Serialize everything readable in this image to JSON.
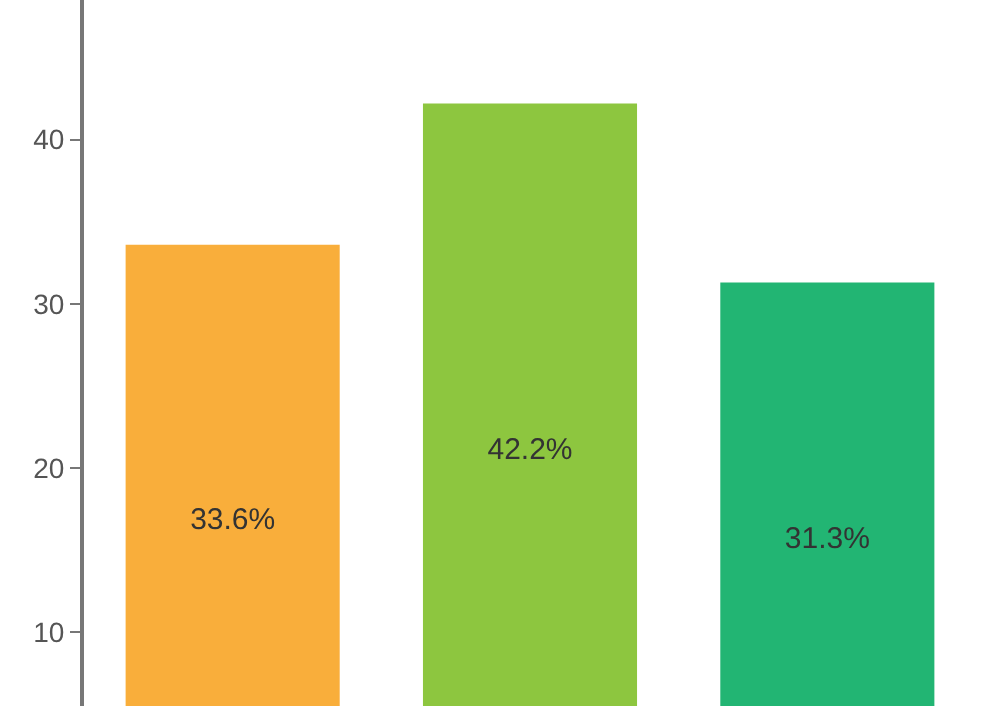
{
  "chart_data": {
    "type": "bar",
    "categories": [
      null,
      null,
      null
    ],
    "values": [
      33.6,
      42.2,
      31.3
    ],
    "colors": [
      "#f9ae3b",
      "#8dc63f",
      "#22b573"
    ],
    "value_labels": [
      "33.6%",
      "42.2%",
      "31.3%"
    ],
    "ylim": [
      5.5,
      48.5
    ],
    "yticks": [
      10,
      20,
      30,
      40
    ]
  }
}
